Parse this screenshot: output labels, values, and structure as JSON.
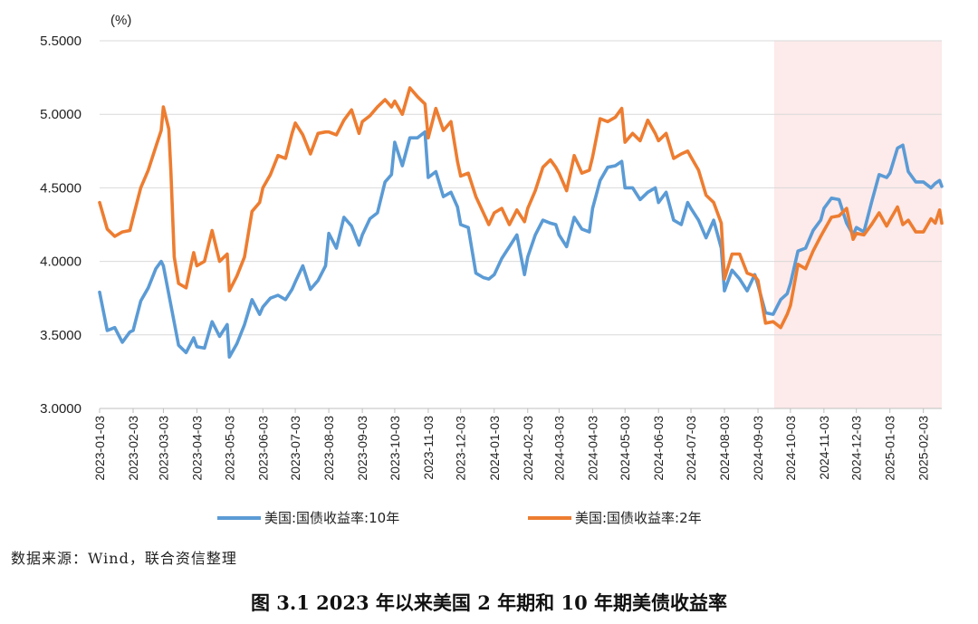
{
  "chart_data": {
    "type": "line",
    "unit_label": "(%)",
    "y_axis": {
      "min": 3.0,
      "max": 5.5,
      "ticks": [
        "3.0000",
        "3.5000",
        "4.0000",
        "4.5000",
        "5.0000",
        "5.5000"
      ]
    },
    "x_axis": {
      "ticks": [
        "2023-01-03",
        "2023-02-03",
        "2023-03-03",
        "2023-04-03",
        "2023-05-03",
        "2023-06-03",
        "2023-07-03",
        "2023-08-03",
        "2023-09-03",
        "2023-10-03",
        "2023-11-03",
        "2023-12-03",
        "2024-01-03",
        "2024-02-03",
        "2024-03-03",
        "2024-04-03",
        "2024-05-03",
        "2024-06-03",
        "2024-07-03",
        "2024-08-03",
        "2024-09-03",
        "2024-10-03",
        "2024-11-03",
        "2024-12-03",
        "2025-01-03",
        "2025-02-03"
      ],
      "start": "2023-01-03",
      "end": "2025-02-20"
    },
    "grid": "horizontal",
    "legend_position": "bottom",
    "shaded_region": {
      "start": "2024-09-18",
      "end": "2025-02-20",
      "color": "#fdeaea"
    },
    "series": [
      {
        "name": "美国:国债收益率:10年",
        "color": "#5b9bd5",
        "points": [
          [
            "2023-01-03",
            3.79
          ],
          [
            "2023-01-10",
            3.53
          ],
          [
            "2023-01-17",
            3.55
          ],
          [
            "2023-01-24",
            3.45
          ],
          [
            "2023-01-31",
            3.52
          ],
          [
            "2023-02-03",
            3.53
          ],
          [
            "2023-02-10",
            3.73
          ],
          [
            "2023-02-17",
            3.82
          ],
          [
            "2023-02-24",
            3.95
          ],
          [
            "2023-03-01",
            4.0
          ],
          [
            "2023-03-03",
            3.97
          ],
          [
            "2023-03-10",
            3.7
          ],
          [
            "2023-03-17",
            3.43
          ],
          [
            "2023-03-24",
            3.38
          ],
          [
            "2023-03-31",
            3.48
          ],
          [
            "2023-04-03",
            3.42
          ],
          [
            "2023-04-10",
            3.41
          ],
          [
            "2023-04-17",
            3.59
          ],
          [
            "2023-04-24",
            3.49
          ],
          [
            "2023-05-01",
            3.57
          ],
          [
            "2023-05-03",
            3.35
          ],
          [
            "2023-05-10",
            3.44
          ],
          [
            "2023-05-17",
            3.57
          ],
          [
            "2023-05-24",
            3.74
          ],
          [
            "2023-05-31",
            3.64
          ],
          [
            "2023-06-03",
            3.69
          ],
          [
            "2023-06-10",
            3.75
          ],
          [
            "2023-06-17",
            3.77
          ],
          [
            "2023-06-24",
            3.74
          ],
          [
            "2023-06-30",
            3.81
          ],
          [
            "2023-07-03",
            3.86
          ],
          [
            "2023-07-10",
            3.97
          ],
          [
            "2023-07-17",
            3.81
          ],
          [
            "2023-07-24",
            3.87
          ],
          [
            "2023-07-31",
            3.97
          ],
          [
            "2023-08-03",
            4.19
          ],
          [
            "2023-08-10",
            4.09
          ],
          [
            "2023-08-17",
            4.3
          ],
          [
            "2023-08-24",
            4.24
          ],
          [
            "2023-08-31",
            4.11
          ],
          [
            "2023-09-03",
            4.18
          ],
          [
            "2023-09-10",
            4.29
          ],
          [
            "2023-09-17",
            4.33
          ],
          [
            "2023-09-24",
            4.54
          ],
          [
            "2023-09-30",
            4.59
          ],
          [
            "2023-10-03",
            4.81
          ],
          [
            "2023-10-10",
            4.65
          ],
          [
            "2023-10-17",
            4.84
          ],
          [
            "2023-10-24",
            4.84
          ],
          [
            "2023-10-31",
            4.88
          ],
          [
            "2023-11-03",
            4.57
          ],
          [
            "2023-11-10",
            4.61
          ],
          [
            "2023-11-17",
            4.44
          ],
          [
            "2023-11-24",
            4.47
          ],
          [
            "2023-11-30",
            4.37
          ],
          [
            "2023-12-03",
            4.25
          ],
          [
            "2023-12-10",
            4.23
          ],
          [
            "2023-12-17",
            3.92
          ],
          [
            "2023-12-24",
            3.89
          ],
          [
            "2023-12-29",
            3.88
          ],
          [
            "2024-01-03",
            3.91
          ],
          [
            "2024-01-10",
            4.02
          ],
          [
            "2024-01-17",
            4.1
          ],
          [
            "2024-01-24",
            4.18
          ],
          [
            "2024-01-31",
            3.91
          ],
          [
            "2024-02-03",
            4.03
          ],
          [
            "2024-02-10",
            4.18
          ],
          [
            "2024-02-17",
            4.28
          ],
          [
            "2024-02-24",
            4.26
          ],
          [
            "2024-02-29",
            4.25
          ],
          [
            "2024-03-03",
            4.18
          ],
          [
            "2024-03-10",
            4.1
          ],
          [
            "2024-03-17",
            4.3
          ],
          [
            "2024-03-24",
            4.22
          ],
          [
            "2024-03-31",
            4.2
          ],
          [
            "2024-04-03",
            4.36
          ],
          [
            "2024-04-10",
            4.55
          ],
          [
            "2024-04-17",
            4.64
          ],
          [
            "2024-04-24",
            4.65
          ],
          [
            "2024-04-30",
            4.68
          ],
          [
            "2024-05-03",
            4.5
          ],
          [
            "2024-05-10",
            4.5
          ],
          [
            "2024-05-17",
            4.42
          ],
          [
            "2024-05-24",
            4.47
          ],
          [
            "2024-05-31",
            4.5
          ],
          [
            "2024-06-03",
            4.4
          ],
          [
            "2024-06-10",
            4.47
          ],
          [
            "2024-06-17",
            4.28
          ],
          [
            "2024-06-24",
            4.25
          ],
          [
            "2024-06-30",
            4.4
          ],
          [
            "2024-07-03",
            4.36
          ],
          [
            "2024-07-10",
            4.28
          ],
          [
            "2024-07-17",
            4.16
          ],
          [
            "2024-07-24",
            4.28
          ],
          [
            "2024-07-31",
            4.09
          ],
          [
            "2024-08-03",
            3.8
          ],
          [
            "2024-08-10",
            3.94
          ],
          [
            "2024-08-17",
            3.88
          ],
          [
            "2024-08-24",
            3.8
          ],
          [
            "2024-08-31",
            3.91
          ],
          [
            "2024-09-03",
            3.84
          ],
          [
            "2024-09-10",
            3.65
          ],
          [
            "2024-09-17",
            3.64
          ],
          [
            "2024-09-24",
            3.74
          ],
          [
            "2024-09-30",
            3.78
          ],
          [
            "2024-10-03",
            3.85
          ],
          [
            "2024-10-10",
            4.07
          ],
          [
            "2024-10-17",
            4.09
          ],
          [
            "2024-10-24",
            4.21
          ],
          [
            "2024-10-31",
            4.28
          ],
          [
            "2024-11-03",
            4.36
          ],
          [
            "2024-11-10",
            4.43
          ],
          [
            "2024-11-17",
            4.42
          ],
          [
            "2024-11-24",
            4.26
          ],
          [
            "2024-11-30",
            4.18
          ],
          [
            "2024-12-03",
            4.23
          ],
          [
            "2024-12-10",
            4.2
          ],
          [
            "2024-12-17",
            4.4
          ],
          [
            "2024-12-24",
            4.59
          ],
          [
            "2024-12-31",
            4.57
          ],
          [
            "2025-01-03",
            4.6
          ],
          [
            "2025-01-10",
            4.77
          ],
          [
            "2025-01-15",
            4.79
          ],
          [
            "2025-01-20",
            4.61
          ],
          [
            "2025-01-27",
            4.54
          ],
          [
            "2025-02-03",
            4.54
          ],
          [
            "2025-02-10",
            4.5
          ],
          [
            "2025-02-14",
            4.53
          ],
          [
            "2025-02-18",
            4.55
          ],
          [
            "2025-02-20",
            4.51
          ]
        ]
      },
      {
        "name": "美国:国债收益率:2年",
        "color": "#ed7d31",
        "points": [
          [
            "2023-01-03",
            4.4
          ],
          [
            "2023-01-10",
            4.22
          ],
          [
            "2023-01-17",
            4.17
          ],
          [
            "2023-01-24",
            4.2
          ],
          [
            "2023-01-31",
            4.21
          ],
          [
            "2023-02-03",
            4.3
          ],
          [
            "2023-02-10",
            4.5
          ],
          [
            "2023-02-17",
            4.62
          ],
          [
            "2023-02-24",
            4.78
          ],
          [
            "2023-03-01",
            4.89
          ],
          [
            "2023-03-03",
            5.05
          ],
          [
            "2023-03-08",
            4.9
          ],
          [
            "2023-03-10",
            4.6
          ],
          [
            "2023-03-13",
            4.03
          ],
          [
            "2023-03-17",
            3.85
          ],
          [
            "2023-03-24",
            3.82
          ],
          [
            "2023-03-31",
            4.06
          ],
          [
            "2023-04-03",
            3.97
          ],
          [
            "2023-04-10",
            4.0
          ],
          [
            "2023-04-17",
            4.21
          ],
          [
            "2023-04-24",
            4.0
          ],
          [
            "2023-05-01",
            4.05
          ],
          [
            "2023-05-03",
            3.8
          ],
          [
            "2023-05-10",
            3.9
          ],
          [
            "2023-05-17",
            4.03
          ],
          [
            "2023-05-24",
            4.34
          ],
          [
            "2023-05-31",
            4.4
          ],
          [
            "2023-06-03",
            4.5
          ],
          [
            "2023-06-10",
            4.59
          ],
          [
            "2023-06-17",
            4.72
          ],
          [
            "2023-06-24",
            4.7
          ],
          [
            "2023-06-30",
            4.87
          ],
          [
            "2023-07-03",
            4.94
          ],
          [
            "2023-07-10",
            4.86
          ],
          [
            "2023-07-17",
            4.73
          ],
          [
            "2023-07-24",
            4.87
          ],
          [
            "2023-07-31",
            4.88
          ],
          [
            "2023-08-03",
            4.88
          ],
          [
            "2023-08-10",
            4.86
          ],
          [
            "2023-08-17",
            4.96
          ],
          [
            "2023-08-24",
            5.03
          ],
          [
            "2023-08-31",
            4.87
          ],
          [
            "2023-09-03",
            4.95
          ],
          [
            "2023-09-10",
            4.99
          ],
          [
            "2023-09-17",
            5.05
          ],
          [
            "2023-09-24",
            5.1
          ],
          [
            "2023-09-30",
            5.05
          ],
          [
            "2023-10-03",
            5.09
          ],
          [
            "2023-10-10",
            5.0
          ],
          [
            "2023-10-17",
            5.18
          ],
          [
            "2023-10-24",
            5.12
          ],
          [
            "2023-10-31",
            5.07
          ],
          [
            "2023-11-03",
            4.84
          ],
          [
            "2023-11-10",
            5.04
          ],
          [
            "2023-11-17",
            4.89
          ],
          [
            "2023-11-24",
            4.95
          ],
          [
            "2023-11-30",
            4.68
          ],
          [
            "2023-12-03",
            4.58
          ],
          [
            "2023-12-10",
            4.6
          ],
          [
            "2023-12-17",
            4.44
          ],
          [
            "2023-12-24",
            4.33
          ],
          [
            "2023-12-29",
            4.25
          ],
          [
            "2024-01-03",
            4.33
          ],
          [
            "2024-01-10",
            4.36
          ],
          [
            "2024-01-17",
            4.25
          ],
          [
            "2024-01-24",
            4.35
          ],
          [
            "2024-01-31",
            4.27
          ],
          [
            "2024-02-03",
            4.36
          ],
          [
            "2024-02-10",
            4.48
          ],
          [
            "2024-02-17",
            4.64
          ],
          [
            "2024-02-24",
            4.69
          ],
          [
            "2024-02-29",
            4.64
          ],
          [
            "2024-03-03",
            4.6
          ],
          [
            "2024-03-10",
            4.48
          ],
          [
            "2024-03-17",
            4.72
          ],
          [
            "2024-03-24",
            4.6
          ],
          [
            "2024-03-31",
            4.62
          ],
          [
            "2024-04-03",
            4.71
          ],
          [
            "2024-04-10",
            4.97
          ],
          [
            "2024-04-17",
            4.95
          ],
          [
            "2024-04-24",
            4.98
          ],
          [
            "2024-04-30",
            5.04
          ],
          [
            "2024-05-03",
            4.81
          ],
          [
            "2024-05-10",
            4.87
          ],
          [
            "2024-05-17",
            4.82
          ],
          [
            "2024-05-24",
            4.96
          ],
          [
            "2024-05-31",
            4.87
          ],
          [
            "2024-06-03",
            4.82
          ],
          [
            "2024-06-10",
            4.87
          ],
          [
            "2024-06-17",
            4.7
          ],
          [
            "2024-06-24",
            4.73
          ],
          [
            "2024-06-30",
            4.75
          ],
          [
            "2024-07-03",
            4.71
          ],
          [
            "2024-07-10",
            4.62
          ],
          [
            "2024-07-17",
            4.45
          ],
          [
            "2024-07-24",
            4.4
          ],
          [
            "2024-07-31",
            4.26
          ],
          [
            "2024-08-03",
            3.88
          ],
          [
            "2024-08-10",
            4.05
          ],
          [
            "2024-08-17",
            4.05
          ],
          [
            "2024-08-24",
            3.92
          ],
          [
            "2024-08-31",
            3.9
          ],
          [
            "2024-09-03",
            3.87
          ],
          [
            "2024-09-10",
            3.58
          ],
          [
            "2024-09-17",
            3.59
          ],
          [
            "2024-09-24",
            3.55
          ],
          [
            "2024-09-30",
            3.64
          ],
          [
            "2024-10-03",
            3.7
          ],
          [
            "2024-10-10",
            3.98
          ],
          [
            "2024-10-17",
            3.95
          ],
          [
            "2024-10-24",
            4.07
          ],
          [
            "2024-10-31",
            4.17
          ],
          [
            "2024-11-03",
            4.21
          ],
          [
            "2024-11-10",
            4.3
          ],
          [
            "2024-11-17",
            4.31
          ],
          [
            "2024-11-24",
            4.36
          ],
          [
            "2024-11-30",
            4.15
          ],
          [
            "2024-12-03",
            4.19
          ],
          [
            "2024-12-10",
            4.18
          ],
          [
            "2024-12-17",
            4.25
          ],
          [
            "2024-12-24",
            4.33
          ],
          [
            "2024-12-31",
            4.24
          ],
          [
            "2025-01-03",
            4.28
          ],
          [
            "2025-01-10",
            4.37
          ],
          [
            "2025-01-15",
            4.25
          ],
          [
            "2025-01-20",
            4.28
          ],
          [
            "2025-01-27",
            4.2
          ],
          [
            "2025-02-03",
            4.2
          ],
          [
            "2025-02-10",
            4.29
          ],
          [
            "2025-02-14",
            4.26
          ],
          [
            "2025-02-18",
            4.35
          ],
          [
            "2025-02-20",
            4.26
          ]
        ]
      }
    ]
  },
  "source_text": "数据来源：Wind，联合资信整理",
  "caption": "图 3.1    2023 年以来美国 2 年期和 10 年期美债收益率"
}
